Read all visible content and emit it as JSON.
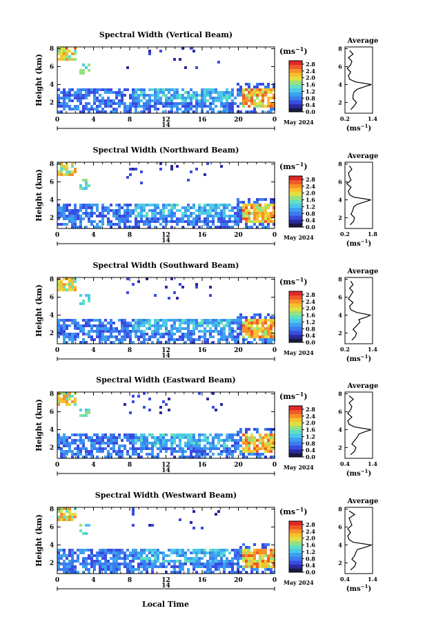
{
  "figure": {
    "xaxis_title": "Local Time",
    "date_label": "May 2024",
    "day_label": "14",
    "height_axis_label": "Height (km)",
    "unit_label": "(ms",
    "unit_exp": "−1",
    "average_title": "Average",
    "x_ticks": [
      "0",
      "4",
      "8",
      "12",
      "16",
      "20",
      "0"
    ],
    "y_ticks": [
      "2",
      "4",
      "6",
      "8"
    ],
    "colorbar_ticks": [
      "0.0",
      "0.4",
      "0.8",
      "1.2",
      "1.6",
      "2.0",
      "2.4",
      "2.8"
    ],
    "colorbar_colors": [
      "#1a1a40",
      "#2a2aa0",
      "#3a4ce0",
      "#3b7cf0",
      "#3ea0f0",
      "#4cc8e8",
      "#60e0c0",
      "#9ae080",
      "#e0e040",
      "#f8c030",
      "#f89028",
      "#f05a28",
      "#e02828"
    ]
  },
  "chart_data": [
    {
      "type": "heatmap",
      "title": "Spectral Width (Vertical Beam)",
      "xlabel": "Local Time",
      "ylabel": "Height (km)",
      "xlim": [
        0,
        24
      ],
      "ylim": [
        0.8,
        8.2
      ],
      "colorbar_range": [
        0,
        3.0
      ],
      "average_profile": {
        "xticks": [
          "0.2",
          "1.4"
        ],
        "xlim": [
          0.2,
          1.4
        ],
        "height": [
          1.2,
          1.6,
          2.0,
          2.4,
          2.8,
          3.2,
          3.5,
          3.8,
          4.0,
          4.3,
          4.6,
          5.0,
          5.4,
          5.8,
          6.2,
          6.6,
          7.0,
          7.4,
          7.8
        ],
        "value": [
          0.45,
          0.6,
          0.7,
          0.55,
          0.55,
          0.6,
          0.75,
          1.1,
          1.35,
          0.65,
          0.4,
          0.35,
          0.45,
          0.3,
          0.45,
          0.5,
          0.35,
          0.55,
          0.4
        ]
      }
    },
    {
      "type": "heatmap",
      "title": "Spectral Width (Northward Beam)",
      "xlabel": "Local Time",
      "ylabel": "Height (km)",
      "xlim": [
        0,
        24
      ],
      "ylim": [
        0.8,
        8.2
      ],
      "colorbar_range": [
        0,
        3.0
      ],
      "average_profile": {
        "xticks": [
          "0.2",
          "1.8"
        ],
        "xlim": [
          0.2,
          1.8
        ],
        "height": [
          1.2,
          1.6,
          2.0,
          2.4,
          2.8,
          3.2,
          3.5,
          3.8,
          4.0,
          4.3,
          4.6,
          5.0,
          5.4,
          5.8,
          6.2,
          6.6,
          7.0,
          7.4,
          7.8
        ],
        "value": [
          0.5,
          0.7,
          0.75,
          0.55,
          0.65,
          0.7,
          0.9,
          1.4,
          1.7,
          0.7,
          0.45,
          0.4,
          0.55,
          0.3,
          0.55,
          0.45,
          0.4,
          0.6,
          0.45
        ]
      }
    },
    {
      "type": "heatmap",
      "title": "Spectral Width (Southward Beam)",
      "xlabel": "Local Time",
      "ylabel": "Height (km)",
      "xlim": [
        0,
        24
      ],
      "ylim": [
        0.8,
        8.2
      ],
      "colorbar_range": [
        0,
        3.0
      ],
      "average_profile": {
        "xticks": [
          "0.2",
          "1.4"
        ],
        "xlim": [
          0.2,
          1.4
        ],
        "height": [
          1.2,
          1.6,
          2.0,
          2.4,
          2.8,
          3.2,
          3.5,
          3.8,
          4.0,
          4.3,
          4.6,
          5.0,
          5.4,
          5.8,
          6.2,
          6.6,
          7.0,
          7.4,
          7.8
        ],
        "value": [
          0.5,
          0.65,
          0.7,
          0.55,
          0.7,
          0.85,
          0.8,
          1.15,
          1.3,
          0.7,
          0.45,
          0.4,
          0.55,
          0.35,
          0.45,
          0.55,
          0.4,
          0.55,
          0.45
        ]
      }
    },
    {
      "type": "heatmap",
      "title": "Spectral Width (Eastward Beam)",
      "xlabel": "Local Time",
      "ylabel": "Height (km)",
      "xlim": [
        0,
        24
      ],
      "ylim": [
        0.8,
        8.2
      ],
      "colorbar_range": [
        0,
        3.0
      ],
      "average_profile": {
        "xticks": [
          "0.4",
          "1.4"
        ],
        "xlim": [
          0.4,
          1.4
        ],
        "height": [
          1.2,
          1.6,
          2.0,
          2.4,
          2.8,
          3.2,
          3.5,
          3.8,
          4.0,
          4.3,
          4.6,
          5.0,
          5.4,
          5.8,
          6.2,
          6.6,
          7.0,
          7.4,
          7.8
        ],
        "value": [
          0.6,
          0.75,
          0.8,
          0.65,
          0.75,
          0.85,
          0.9,
          1.15,
          1.35,
          0.75,
          0.55,
          0.5,
          0.65,
          0.5,
          0.6,
          0.65,
          0.55,
          0.7,
          0.55
        ]
      }
    },
    {
      "type": "heatmap",
      "title": "Spectral Width (Westward Beam)",
      "xlabel": "Local Time",
      "ylabel": "Height (km)",
      "xlim": [
        0,
        24
      ],
      "ylim": [
        0.8,
        8.2
      ],
      "colorbar_range": [
        0,
        3.0
      ],
      "average_profile": {
        "xticks": [
          "0.4",
          "1.4"
        ],
        "xlim": [
          0.4,
          1.4
        ],
        "height": [
          1.2,
          1.6,
          2.0,
          2.4,
          2.8,
          3.2,
          3.5,
          3.8,
          4.0,
          4.3,
          4.6,
          5.0,
          5.4,
          5.8,
          6.2,
          6.6,
          7.0,
          7.4,
          7.8
        ],
        "value": [
          0.6,
          0.75,
          0.8,
          0.65,
          0.75,
          0.8,
          0.85,
          1.2,
          1.35,
          0.7,
          0.55,
          0.5,
          0.6,
          0.5,
          0.65,
          0.6,
          0.55,
          0.75,
          0.55
        ]
      }
    }
  ]
}
